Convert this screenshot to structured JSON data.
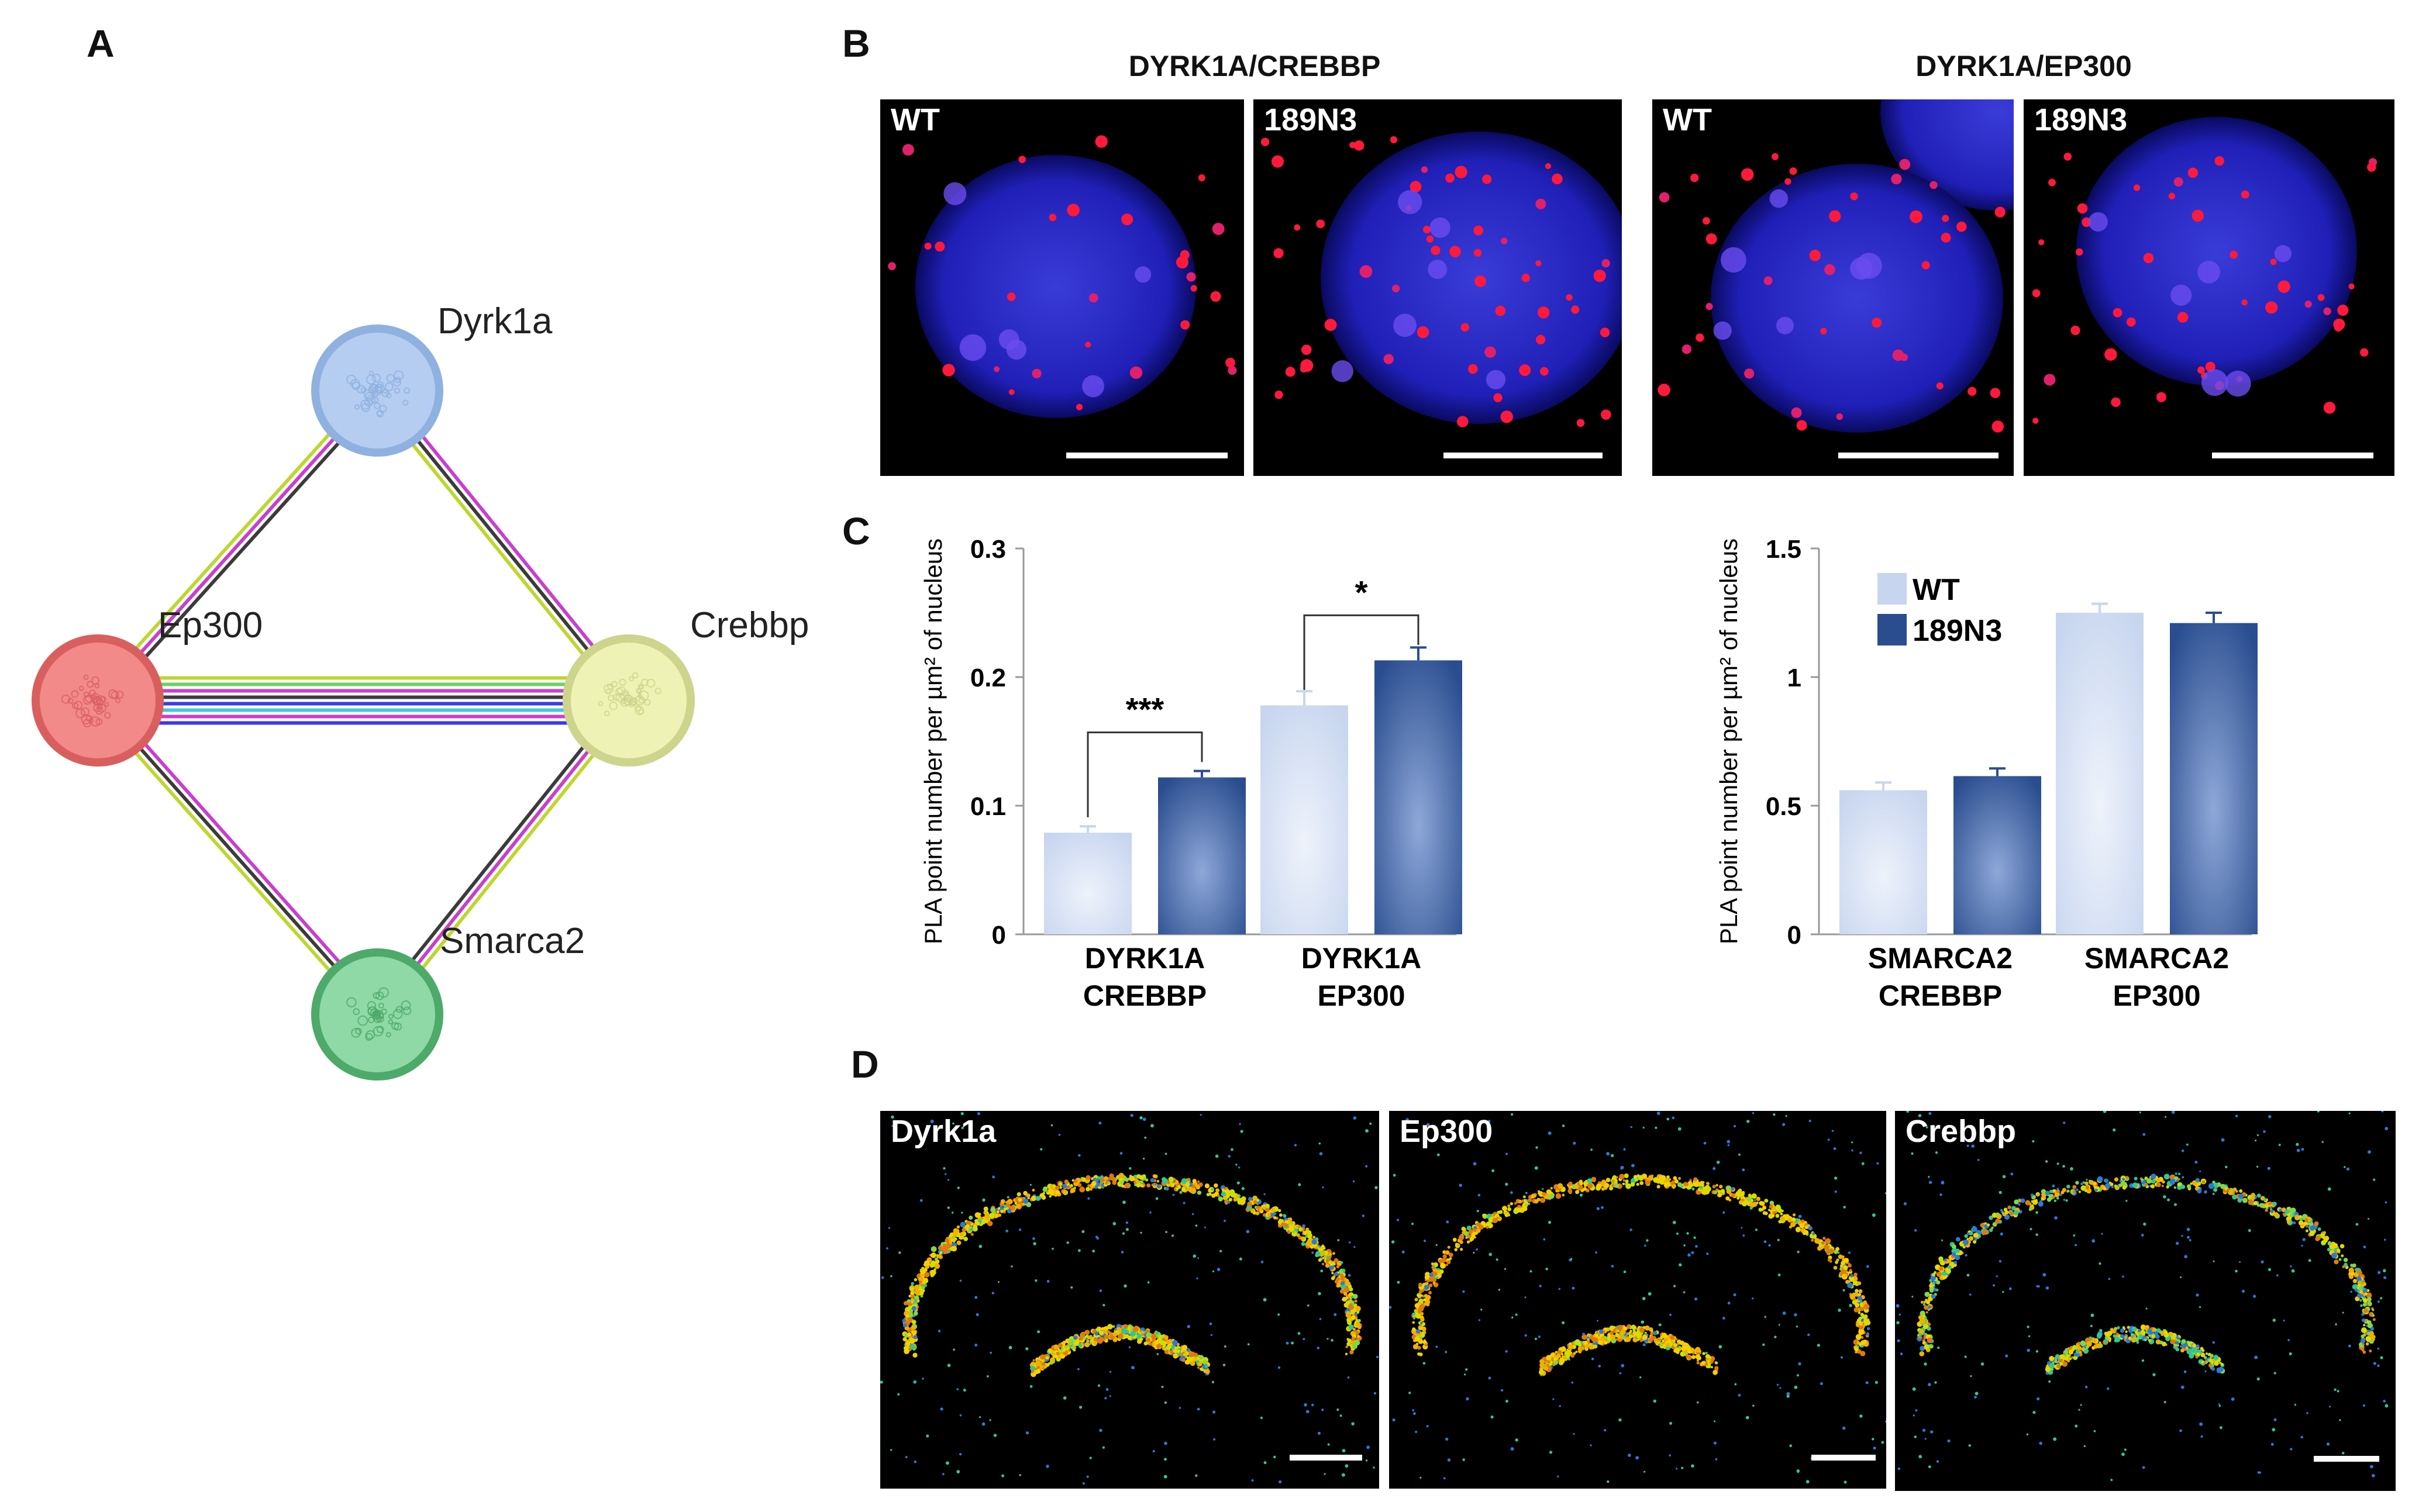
{
  "panels": {
    "a": {
      "letter": "A"
    },
    "b": {
      "letter": "B"
    },
    "c": {
      "letter": "C"
    },
    "d": {
      "letter": "D"
    }
  },
  "network": {
    "nodes": [
      {
        "id": "dyrk1a",
        "label": "Dyrk1a",
        "color": "#b5cdf0",
        "ring": "#8fb1e0"
      },
      {
        "id": "ep300",
        "label": "Ep300",
        "color": "#f28a8a",
        "ring": "#d95f5f"
      },
      {
        "id": "crebbp",
        "label": "Crebbp",
        "color": "#eef2b4",
        "ring": "#cdd48c"
      },
      {
        "id": "smarca2",
        "label": "Smarca2",
        "color": "#8fd9a6",
        "ring": "#4daa6a"
      }
    ],
    "edge_colors": {
      "dark": "#3b3b3b",
      "magenta": "#c83fcf",
      "yellowgreen": "#bfd630",
      "green": "#6fd06a",
      "cyan": "#45c6d8",
      "blue": "#3a3aee"
    }
  },
  "panel_b": {
    "groups": [
      {
        "title": "DYRK1A/CREBBP",
        "images": [
          {
            "label": "WT"
          },
          {
            "label": "189N3"
          }
        ]
      },
      {
        "title": "DYRK1A/EP300",
        "images": [
          {
            "label": "WT"
          },
          {
            "label": "189N3"
          }
        ]
      }
    ]
  },
  "panel_d": {
    "images": [
      {
        "label": "Dyrk1a"
      },
      {
        "label": "Ep300"
      },
      {
        "label": "Crebbp"
      }
    ]
  },
  "chart_data": [
    {
      "type": "bar",
      "categories": [
        [
          "DYRK1A",
          "CREBBP"
        ],
        [
          "DYRK1A",
          "EP300"
        ]
      ],
      "series": [
        {
          "name": "WT",
          "values": [
            0.079,
            0.178
          ],
          "errors": [
            0.005,
            0.011
          ],
          "color": "#c7d5ef"
        },
        {
          "name": "189N3",
          "values": [
            0.122,
            0.213
          ],
          "errors": [
            0.005,
            0.01
          ],
          "color": "#2a4d8f"
        }
      ],
      "ylabel": "PLA point number per µm² of nucleus",
      "ylim": [
        0,
        0.3
      ],
      "yticks": [
        "0",
        "0.1",
        "0.2",
        "0.3"
      ],
      "significance": [
        {
          "category": 0,
          "label": "***"
        },
        {
          "category": 1,
          "label": "*"
        }
      ],
      "legend": "none"
    },
    {
      "type": "bar",
      "categories": [
        [
          "SMARCA2",
          "CREBBP"
        ],
        [
          "SMARCA2",
          "EP300"
        ]
      ],
      "series": [
        {
          "name": "WT",
          "values": [
            0.56,
            1.25
          ],
          "errors": [
            0.03,
            0.035
          ],
          "color": "#c7d5ef"
        },
        {
          "name": "189N3",
          "values": [
            0.615,
            1.21
          ],
          "errors": [
            0.03,
            0.04
          ],
          "color": "#2a4d8f"
        }
      ],
      "ylabel": "PLA point number per µm² of nucleus",
      "ylim": [
        0,
        1.5
      ],
      "yticks": [
        "0",
        "0.5",
        "1",
        "1.5"
      ],
      "legend": "top-left",
      "legend_entries": [
        "WT",
        "189N3"
      ]
    }
  ]
}
